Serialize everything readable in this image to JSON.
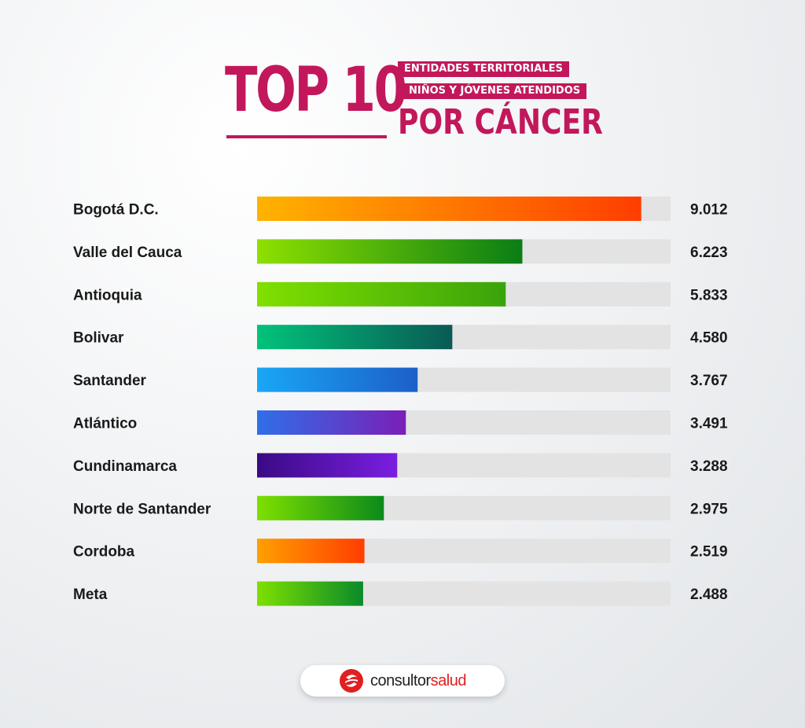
{
  "header": {
    "title_main": "TOP 10",
    "tag_line1": "ENTIDADES TERRITORIALES",
    "tag_line2": "NIÑOS Y JÓVENES ATENDIDOS",
    "title_sub": "POR CÁNCER"
  },
  "chart_data": {
    "type": "bar",
    "orientation": "horizontal",
    "categories": [
      "Bogotá D.C.",
      "Valle del Cauca",
      "Antioquia",
      "Bolivar",
      "Santander",
      "Atlántico",
      "Cundinamarca",
      "Norte de Santander",
      "Cordoba",
      "Meta"
    ],
    "values": [
      9012,
      6223,
      5833,
      4580,
      3767,
      3491,
      3288,
      2975,
      2519,
      2488
    ],
    "value_labels": [
      "9.012",
      "6.223",
      "5.833",
      "4.580",
      "3.767",
      "3.491",
      "3.288",
      "2.975",
      "2.519",
      "2.488"
    ],
    "xlim": [
      0,
      9700
    ],
    "grid": false,
    "legend": "none",
    "bar_colors": [
      [
        "#ffb300",
        "#ff3d00"
      ],
      [
        "#8ee000",
        "#0a7d15"
      ],
      [
        "#80e000",
        "#3aa30a"
      ],
      [
        "#00c37a",
        "#0a5a55"
      ],
      [
        "#1aa7f5",
        "#1c5fc8"
      ],
      [
        "#2f6fe8",
        "#7a1fb8"
      ],
      [
        "#3a0a85",
        "#7a1ee0"
      ],
      [
        "#7ee000",
        "#0a8a1a"
      ],
      [
        "#ffa000",
        "#ff3d00"
      ],
      [
        "#7ee000",
        "#0a8a2a"
      ]
    ],
    "track_color": "#e3e3e3"
  },
  "footer": {
    "brand_part1": "consultor",
    "brand_part2": "salud"
  }
}
